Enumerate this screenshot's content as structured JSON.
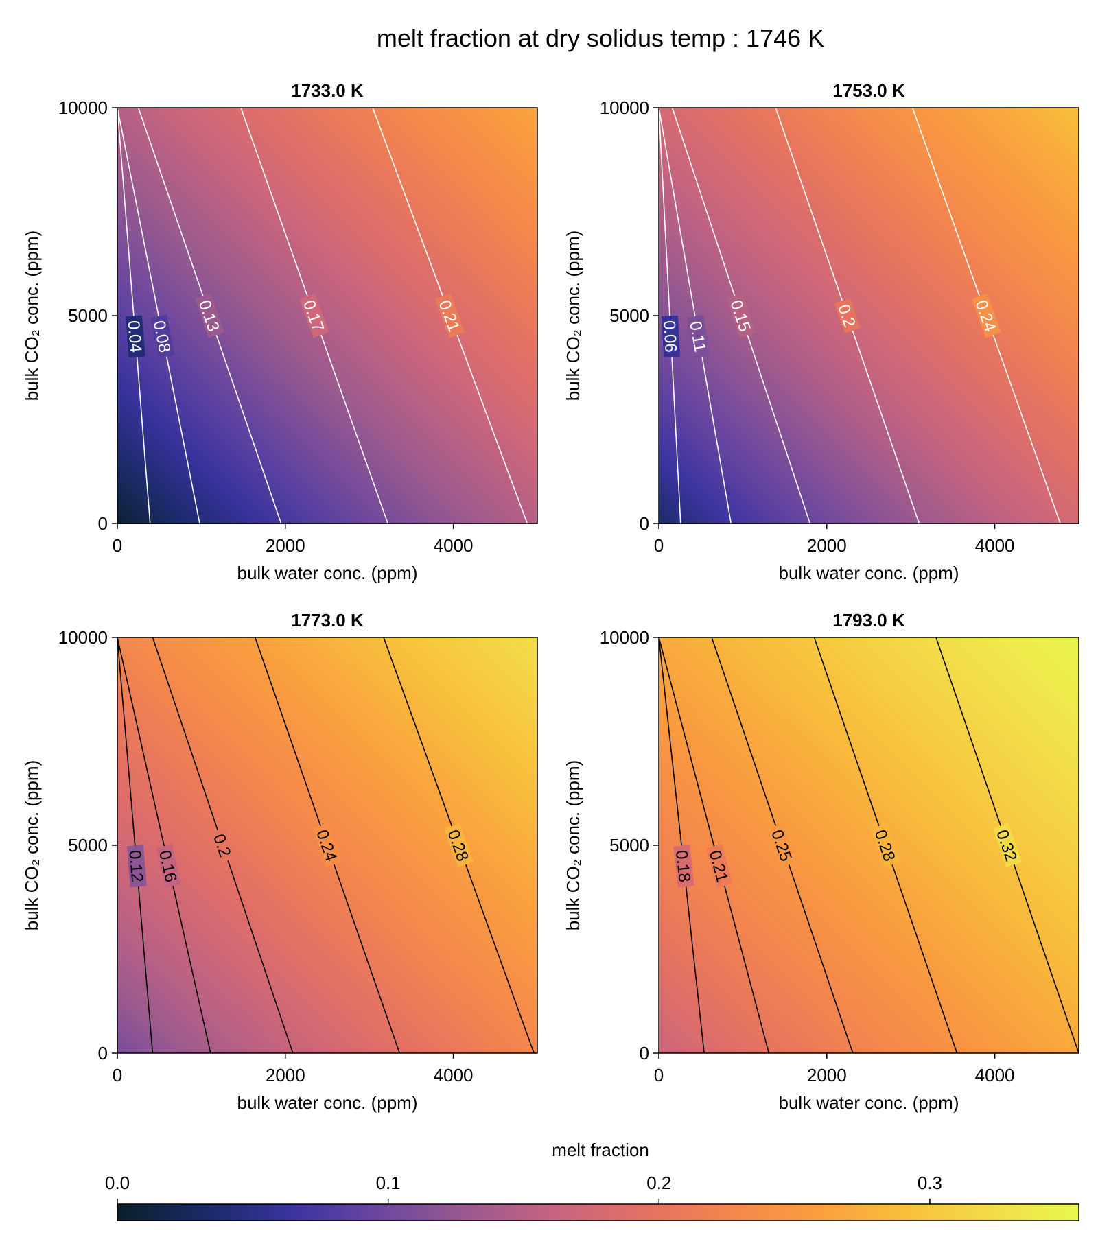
{
  "chart_data": {
    "type": "heatmap",
    "title": "melt fraction at dry solidus temp :  1746 K",
    "colorbar": {
      "label": "melt fraction",
      "range": [
        0.0,
        0.355
      ],
      "ticks": [
        0.0,
        0.1,
        0.2,
        0.3
      ],
      "tick_labels": [
        "0.0",
        "0.1",
        "0.2",
        "0.3"
      ],
      "colors": [
        "#0a1f2a",
        "#1a2a66",
        "#3a33a0",
        "#6b47a0",
        "#9a5a8e",
        "#c76480",
        "#e27064",
        "#f4864d",
        "#fa9e3e",
        "#f8bf3c",
        "#f3dc48",
        "#e7f850"
      ]
    },
    "panels": [
      {
        "title": "1733.0 K",
        "xlabel": "bulk water conc. (ppm)",
        "ylabel": "bulk CO₂ conc. (ppm)",
        "xlim": [
          0,
          5000
        ],
        "ylim": [
          0,
          10000
        ],
        "xticks": [
          0,
          2000,
          4000
        ],
        "xtick_labels": [
          "0",
          "2000",
          "4000"
        ],
        "yticks": [
          0,
          5000,
          10000
        ],
        "ytick_labels": [
          "0",
          "5000",
          "10000"
        ],
        "color_range": [
          0.005,
          0.265
        ],
        "contour_color": "#ffffff",
        "contours": [
          {
            "level": 0.04,
            "label": "0.04",
            "x0": 390,
            "x1": 0
          },
          {
            "level": 0.08,
            "label": "0.08",
            "x0": 980,
            "x1": 0
          },
          {
            "level": 0.13,
            "label": "0.13",
            "x0": 1950,
            "x1": 250
          },
          {
            "level": 0.17,
            "label": "0.17",
            "x0": 3220,
            "x1": 1470
          },
          {
            "level": 0.21,
            "label": "0.21",
            "x0": 4880,
            "x1": 3040
          }
        ]
      },
      {
        "title": "1753.0 K",
        "xlabel": "bulk water conc. (ppm)",
        "ylabel": "bulk CO₂ conc. (ppm)",
        "xlim": [
          0,
          5000
        ],
        "ylim": [
          0,
          10000
        ],
        "xticks": [
          0,
          2000,
          4000
        ],
        "xtick_labels": [
          "0",
          "2000",
          "4000"
        ],
        "yticks": [
          0,
          5000,
          10000
        ],
        "ytick_labels": [
          "0",
          "5000",
          "10000"
        ],
        "color_range": [
          0.035,
          0.29
        ],
        "contour_color": "#ffffff",
        "contours": [
          {
            "level": 0.06,
            "label": "0.06",
            "x0": 260,
            "x1": 0
          },
          {
            "level": 0.11,
            "label": "0.11",
            "x0": 860,
            "x1": 0
          },
          {
            "level": 0.15,
            "label": "0.15",
            "x0": 1800,
            "x1": 160
          },
          {
            "level": 0.2,
            "label": "0.2",
            "x0": 3100,
            "x1": 1390
          },
          {
            "level": 0.24,
            "label": "0.24",
            "x0": 4780,
            "x1": 3020
          }
        ]
      },
      {
        "title": "1773.0 K",
        "xlabel": "bulk water conc. (ppm)",
        "ylabel": "bulk CO₂ conc. (ppm)",
        "xlim": [
          0,
          5000
        ],
        "ylim": [
          0,
          10000
        ],
        "xticks": [
          0,
          2000,
          4000
        ],
        "xtick_labels": [
          "0",
          "2000",
          "4000"
        ],
        "yticks": [
          0,
          5000,
          10000
        ],
        "ytick_labels": [
          "0",
          "5000",
          "10000"
        ],
        "color_range": [
          0.105,
          0.325
        ],
        "contour_color": "#000000",
        "contours": [
          {
            "level": 0.12,
            "label": "0.12",
            "x0": 420,
            "x1": 0
          },
          {
            "level": 0.16,
            "label": "0.16",
            "x0": 1110,
            "x1": 0
          },
          {
            "level": 0.2,
            "label": "0.2",
            "x0": 2090,
            "x1": 420
          },
          {
            "level": 0.24,
            "label": "0.24",
            "x0": 3360,
            "x1": 1640
          },
          {
            "level": 0.28,
            "label": "0.28",
            "x0": 4960,
            "x1": 3170
          }
        ]
      },
      {
        "title": "1793.0 K",
        "xlabel": "bulk water conc. (ppm)",
        "ylabel": "bulk CO₂ conc. (ppm)",
        "xlim": [
          0,
          5000
        ],
        "ylim": [
          0,
          10000
        ],
        "xticks": [
          0,
          2000,
          4000
        ],
        "xtick_labels": [
          "0",
          "2000",
          "4000"
        ],
        "yticks": [
          0,
          5000,
          10000
        ],
        "ytick_labels": [
          "0",
          "5000",
          "10000"
        ],
        "color_range": [
          0.165,
          0.352
        ],
        "contour_color": "#000000",
        "contours": [
          {
            "level": 0.18,
            "label": "0.18",
            "x0": 540,
            "x1": 0
          },
          {
            "level": 0.21,
            "label": "0.21",
            "x0": 1310,
            "x1": 0
          },
          {
            "level": 0.25,
            "label": "0.25",
            "x0": 2310,
            "x1": 630
          },
          {
            "level": 0.28,
            "label": "0.28",
            "x0": 3550,
            "x1": 1850
          },
          {
            "level": 0.32,
            "label": "0.32",
            "x0": 5000,
            "x1": 3300
          }
        ]
      }
    ]
  }
}
